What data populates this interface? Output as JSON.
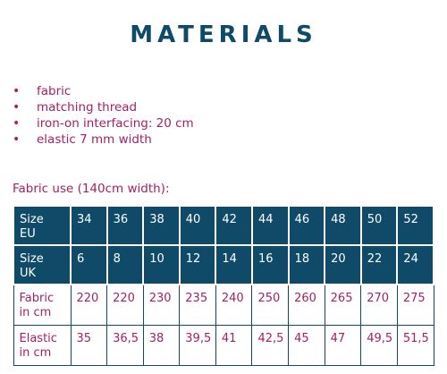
{
  "title": "MATERIALS",
  "materials": [
    "fabric",
    "matching thread",
    "iron-on interfacing: 20 cm",
    "elastic 7 mm width"
  ],
  "bullet": "•",
  "fabric_use_label": "Fabric use (140cm width):",
  "table": {
    "rows": [
      {
        "label": [
          "Size",
          "EU"
        ],
        "values": [
          "34",
          "36",
          "38",
          "40",
          "42",
          "44",
          "46",
          "48",
          "50",
          "52"
        ]
      },
      {
        "label": [
          "Size",
          "UK"
        ],
        "values": [
          "6",
          "8",
          "10",
          "12",
          "14",
          "16",
          "18",
          "20",
          "22",
          "24"
        ]
      },
      {
        "label": [
          "Fabric",
          "in cm"
        ],
        "values": [
          "220",
          "220",
          "230",
          "235",
          "240",
          "250",
          "260",
          "265",
          "270",
          "275"
        ]
      },
      {
        "label": [
          "Elastic",
          "in cm"
        ],
        "values": [
          "35",
          "36,5",
          "38",
          "39,5",
          "41",
          "42,5",
          "45",
          "47",
          "49,5",
          "51,5"
        ]
      }
    ]
  },
  "colors": {
    "heading": "#0f4a68",
    "accent": "#a3206a",
    "header_fill": "#0f4a68"
  }
}
